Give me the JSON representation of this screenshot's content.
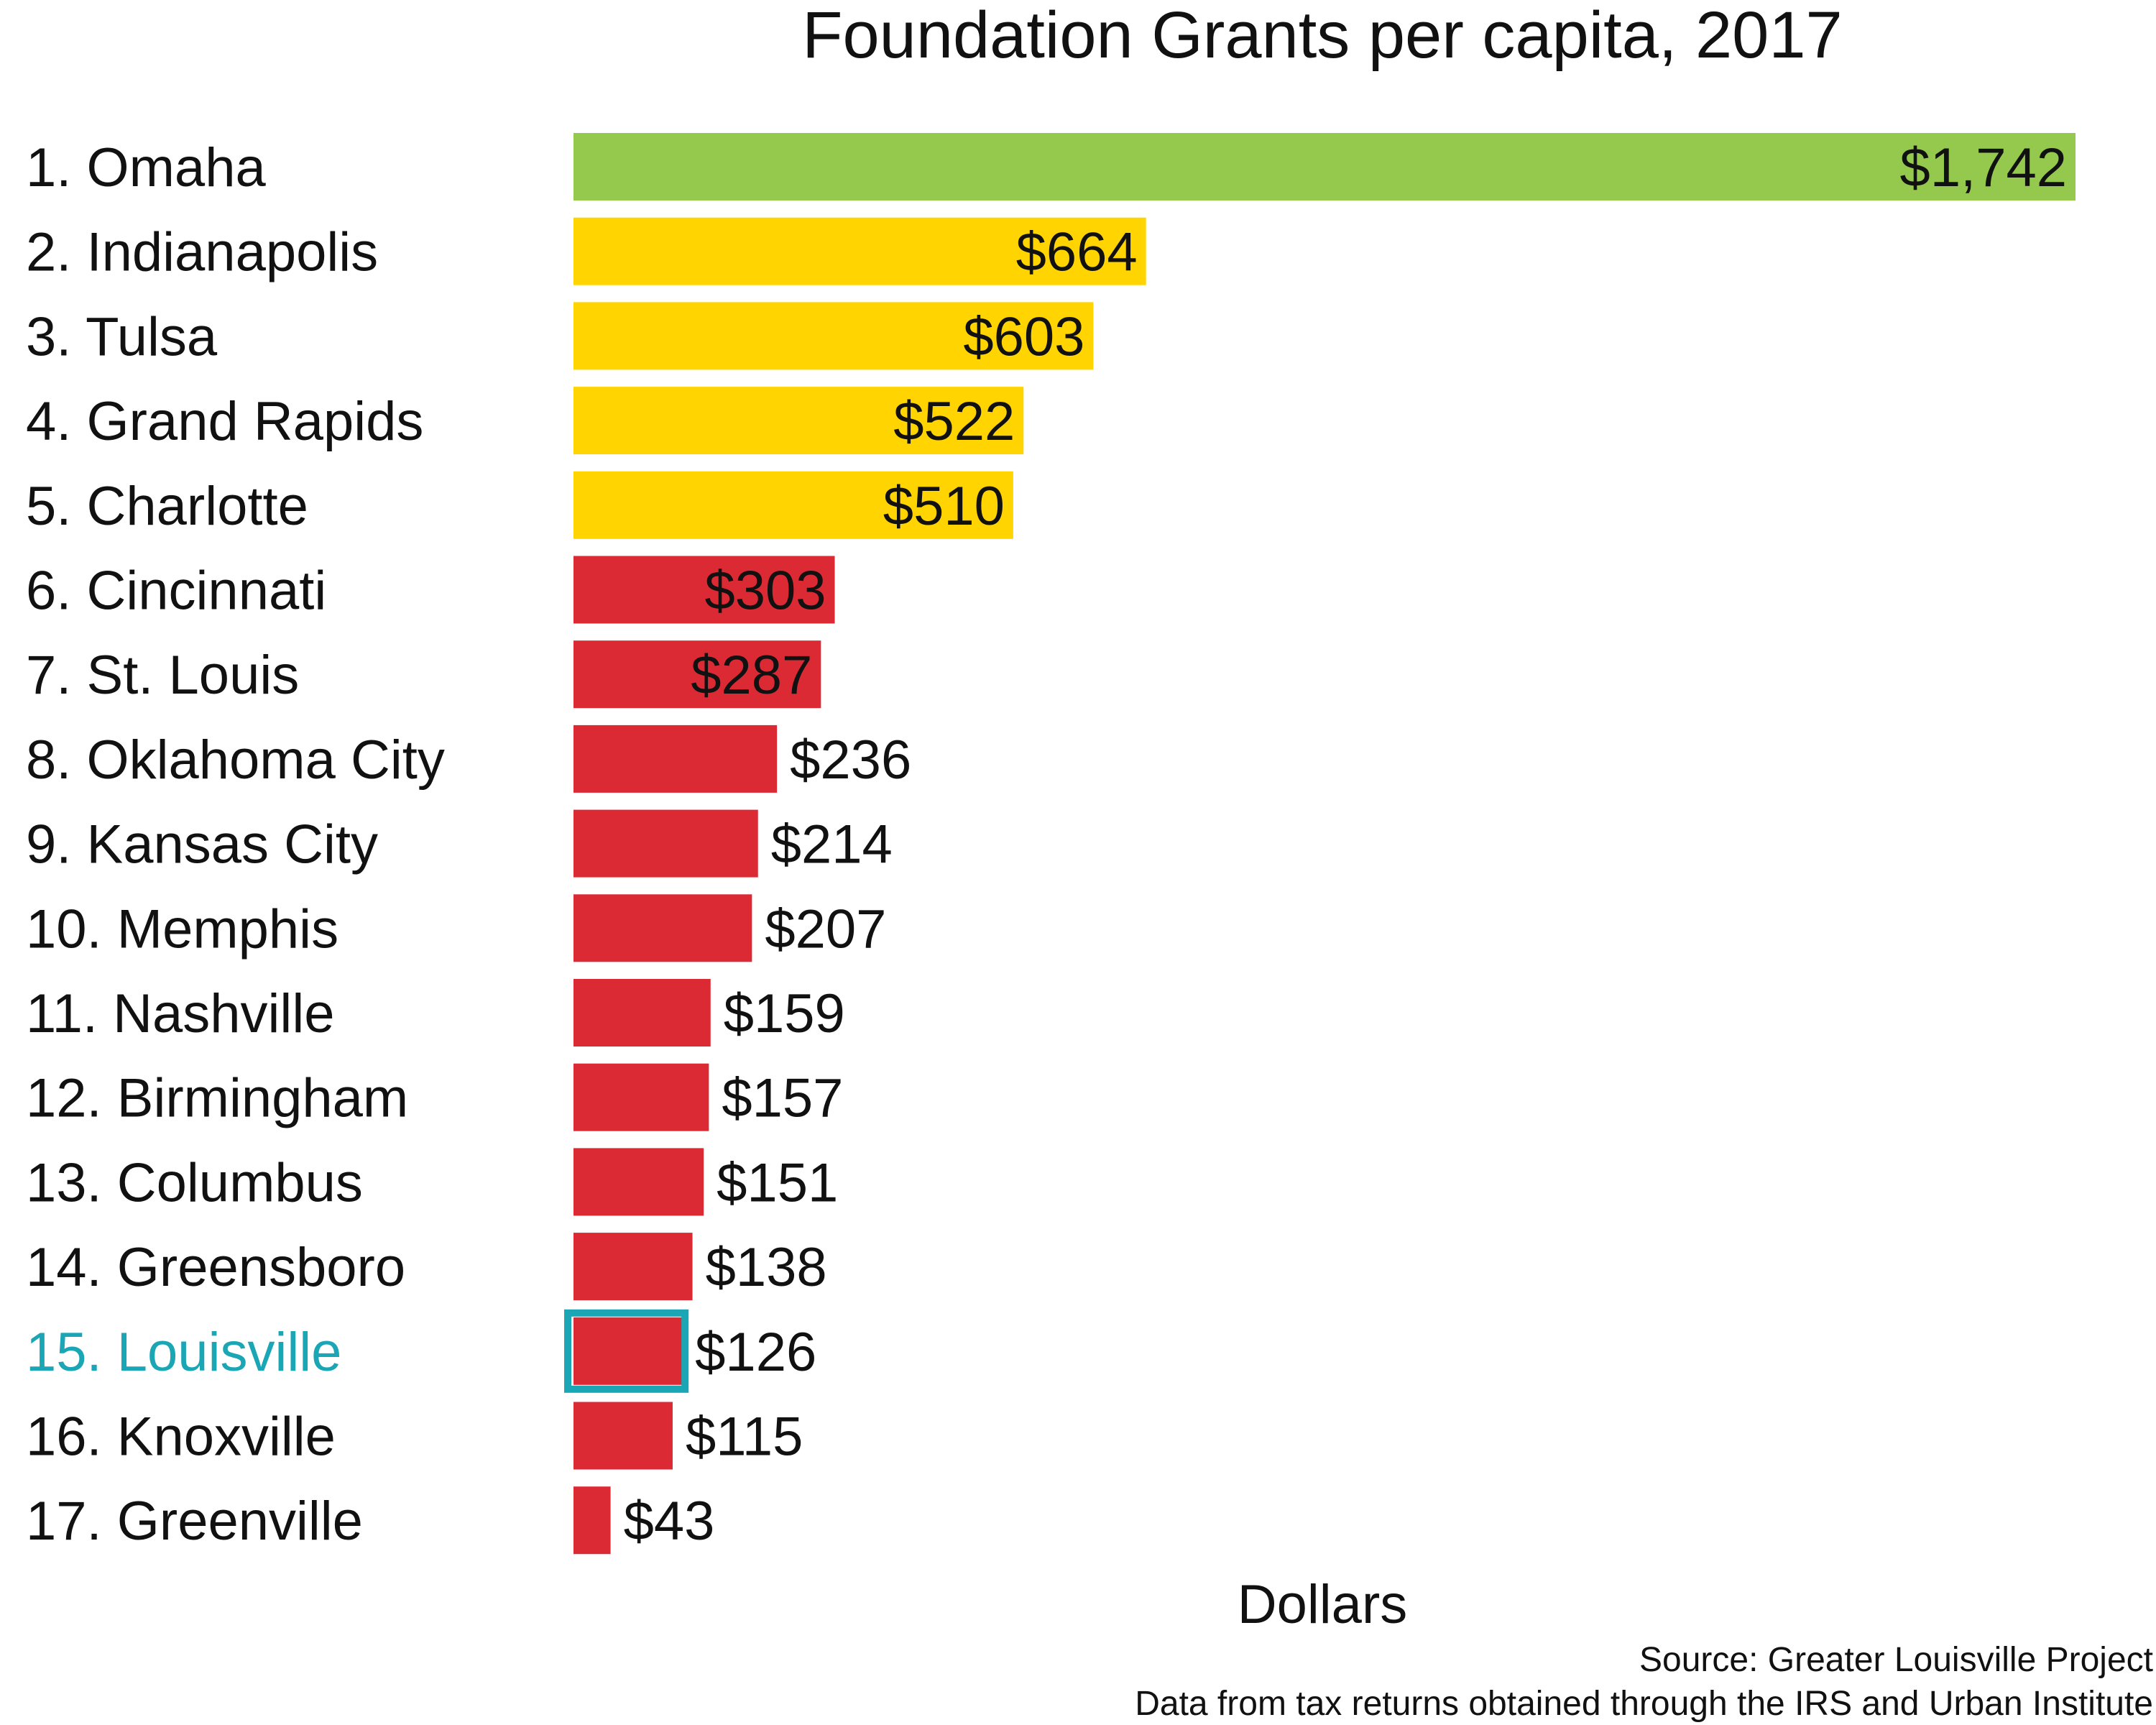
{
  "chart_data": {
    "type": "bar",
    "orientation": "horizontal",
    "title": "Foundation Grants per capita, 2017",
    "xlabel": "Dollars",
    "ylabel": "",
    "xlim": [
      0,
      1742
    ],
    "grid": false,
    "highlight_category": "15. Louisville",
    "highlight_color": "#1aa6b4",
    "categories": [
      "1. Omaha",
      "2. Indianapolis",
      "3. Tulsa",
      "4. Grand Rapids",
      "5. Charlotte",
      "6. Cincinnati",
      "7. St. Louis",
      "8. Oklahoma City",
      "9. Kansas City",
      "10. Memphis",
      "11. Nashville",
      "12. Birmingham",
      "13. Columbus",
      "14. Greensboro",
      "15. Louisville",
      "16. Knoxville",
      "17. Greenville"
    ],
    "values": [
      1742,
      664,
      603,
      522,
      510,
      303,
      287,
      236,
      214,
      207,
      159,
      157,
      151,
      138,
      126,
      115,
      43
    ],
    "value_labels": [
      "$1,742",
      "$664",
      "$603",
      "$522",
      "$510",
      "$303",
      "$287",
      "$236",
      "$214",
      "$207",
      "$159",
      "$157",
      "$151",
      "$138",
      "$126",
      "$115",
      "$43"
    ],
    "bar_colors": [
      "#95c94d",
      "#ffd400",
      "#ffd400",
      "#ffd400",
      "#ffd400",
      "#dc2a35",
      "#dc2a35",
      "#dc2a35",
      "#dc2a35",
      "#dc2a35",
      "#dc2a35",
      "#dc2a35",
      "#dc2a35",
      "#dc2a35",
      "#dc2a35",
      "#dc2a35",
      "#dc2a35"
    ]
  },
  "source": {
    "line1": "Source: Greater Louisville Project",
    "line2": "Data from tax returns obtained through the IRS and Urban Institute"
  }
}
